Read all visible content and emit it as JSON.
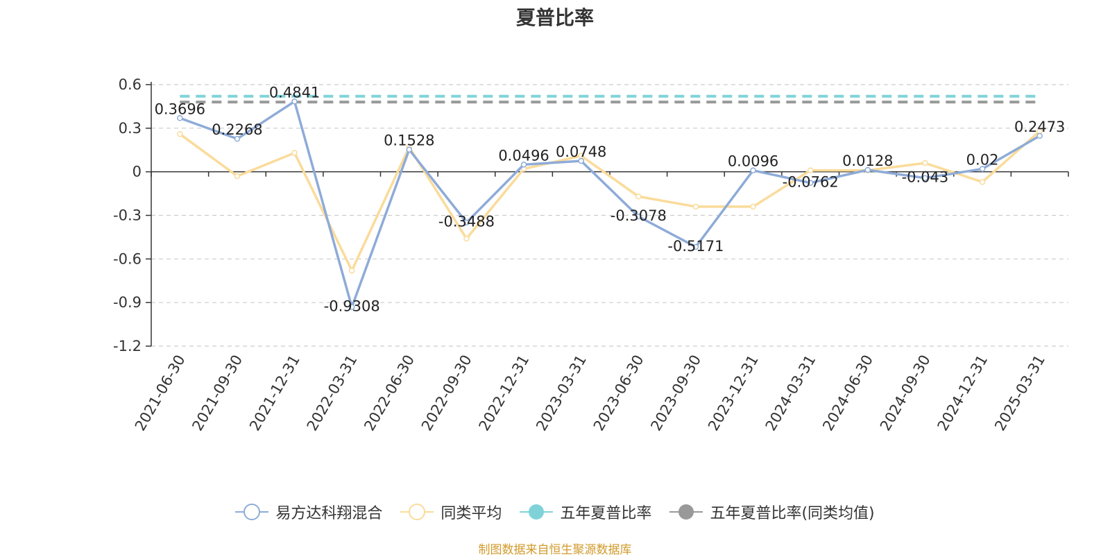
{
  "chart_data": {
    "type": "line",
    "title": "夏普比率",
    "categories": [
      "2021-06-30",
      "2021-09-30",
      "2021-12-31",
      "2022-03-31",
      "2022-06-30",
      "2022-09-30",
      "2022-12-31",
      "2023-03-31",
      "2023-06-30",
      "2023-09-30",
      "2023-12-31",
      "2024-03-31",
      "2024-06-30",
      "2024-09-30",
      "2024-12-31",
      "2025-03-31"
    ],
    "ylim": [
      -1.2,
      0.6
    ],
    "yticks": [
      "0.6",
      "0.3",
      "0",
      "-0.3",
      "-0.6",
      "-0.9",
      "-1.2"
    ],
    "grid": true,
    "legend_position": "bottom",
    "series": [
      {
        "name": "易方达科翔混合",
        "color": "#8eabd8",
        "values": [
          0.3696,
          0.2268,
          0.4841,
          -0.9308,
          0.1528,
          -0.3488,
          0.0496,
          0.0748,
          -0.3078,
          -0.5171,
          0.0096,
          -0.0762,
          0.0128,
          -0.043,
          0.02,
          0.2473
        ],
        "labels": [
          "0.3696",
          "0.2268",
          "0.4841",
          "-0.9308",
          "0.1528",
          "-0.3488",
          "0.0496",
          "0.0748",
          "-0.3078",
          "-0.5171",
          "0.0096",
          "-0.0762",
          "0.0128",
          "-0.043",
          "0.02",
          "0.2473"
        ]
      },
      {
        "name": "同类平均",
        "color": "#fadb9a",
        "values": [
          0.26,
          -0.03,
          0.13,
          -0.68,
          0.17,
          -0.46,
          0.02,
          0.11,
          -0.17,
          -0.24,
          -0.24,
          0.01,
          0.01,
          0.06,
          -0.07,
          0.28
        ]
      },
      {
        "name": "五年夏普比率",
        "color": "#7fd3d8",
        "constant": 0.52
      },
      {
        "name": "五年夏普比率(同类均值)",
        "color": "#999999",
        "constant": 0.48
      }
    ]
  },
  "source_note": "制图数据来自恒生聚源数据库"
}
